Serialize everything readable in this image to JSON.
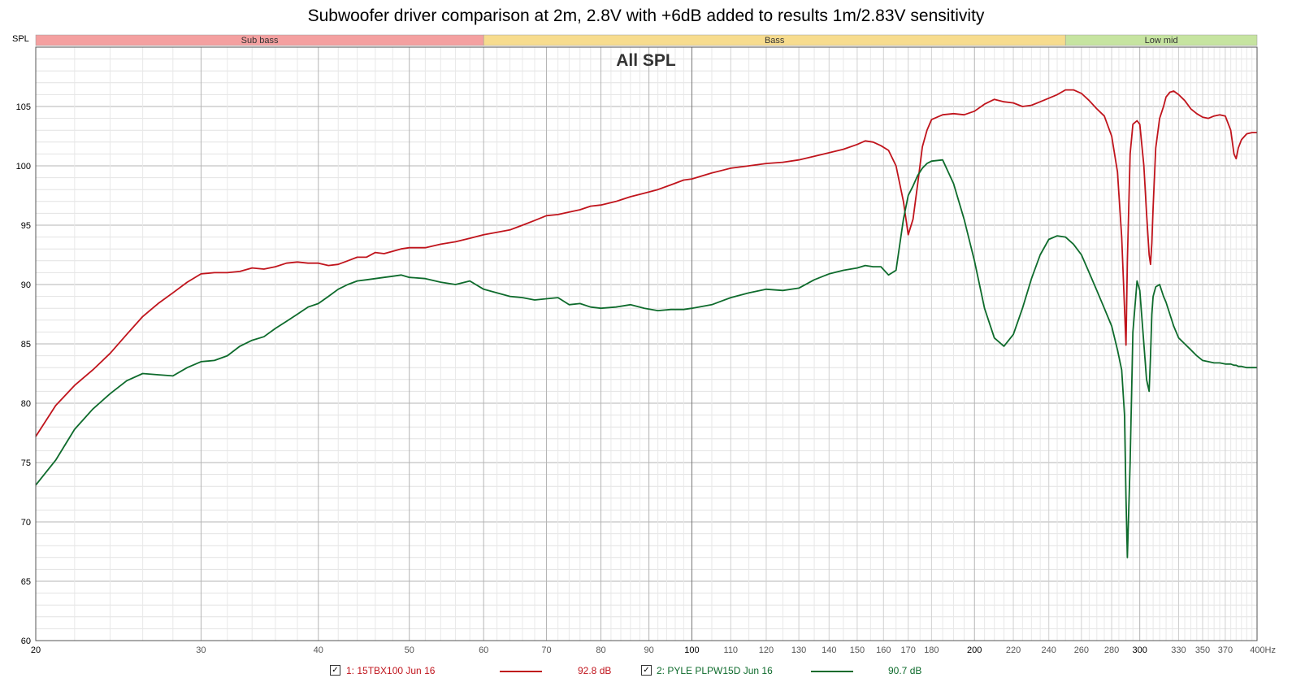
{
  "chart_data": {
    "type": "line",
    "title": "Subwoofer driver comparison at 2m, 2.8V with +6dB added to results 1m/2.83V sensitivity",
    "subtitle": "All SPL",
    "ylabel": "SPL",
    "x_scale": "log",
    "xlim": [
      20,
      400
    ],
    "ylim": [
      60,
      110
    ],
    "y_ticks": [
      60,
      65,
      70,
      75,
      80,
      85,
      90,
      95,
      100,
      105
    ],
    "x_ticks": [
      20,
      30,
      40,
      50,
      60,
      70,
      80,
      90,
      100,
      110,
      120,
      130,
      140,
      150,
      160,
      170,
      180,
      200,
      220,
      240,
      260,
      280,
      300,
      330,
      350,
      370,
      400
    ],
    "x_tick_labels": [
      "20",
      "30",
      "40",
      "50",
      "60",
      "70",
      "80",
      "90",
      "100",
      "110",
      "120",
      "130",
      "140",
      "150",
      "160",
      "170",
      "180",
      "200",
      "220",
      "240",
      "260",
      "280",
      "300",
      "330",
      "350",
      "370",
      "400Hz"
    ],
    "grid": true,
    "bands": [
      {
        "name": "Sub bass",
        "from": 20,
        "to": 60,
        "color": "#f4a0a0"
      },
      {
        "name": "Bass",
        "from": 60,
        "to": 250,
        "color": "#f7dc8e"
      },
      {
        "name": "Low mid",
        "from": 250,
        "to": 400,
        "color": "#c6e4a0"
      }
    ],
    "series": [
      {
        "name": "1: 15TBX100 Jun 16",
        "level": "92.8 dB",
        "color": "#c0141c",
        "x": [
          20,
          21,
          22,
          23,
          24,
          25,
          26,
          27,
          28,
          29,
          30,
          31,
          32,
          33,
          34,
          35,
          36,
          37,
          38,
          39,
          40,
          41,
          42,
          43,
          44,
          45,
          46,
          47,
          48,
          49,
          50,
          52,
          54,
          56,
          58,
          60,
          62,
          64,
          66,
          68,
          70,
          72,
          74,
          76,
          78,
          80,
          83,
          86,
          89,
          92,
          95,
          98,
          100,
          105,
          110,
          115,
          120,
          125,
          130,
          135,
          140,
          145,
          150,
          153,
          156,
          159,
          162,
          165,
          168,
          170,
          172,
          174,
          176,
          178,
          180,
          185,
          190,
          195,
          200,
          205,
          210,
          215,
          220,
          225,
          230,
          235,
          240,
          245,
          250,
          255,
          260,
          265,
          270,
          275,
          280,
          284,
          287,
          289,
          290,
          291,
          293,
          295,
          298,
          300,
          303,
          305,
          307,
          308,
          309,
          310,
          312,
          315,
          318,
          320,
          323,
          326,
          330,
          335,
          340,
          345,
          350,
          355,
          360,
          365,
          370,
          375,
          378,
          380,
          382,
          385,
          390,
          395,
          400
        ],
        "y": [
          77.2,
          79.8,
          81.5,
          82.8,
          84.2,
          85.8,
          87.3,
          88.4,
          89.3,
          90.2,
          90.9,
          91.0,
          91.0,
          91.1,
          91.4,
          91.3,
          91.5,
          91.8,
          91.9,
          91.8,
          91.8,
          91.6,
          91.7,
          92.0,
          92.3,
          92.3,
          92.7,
          92.6,
          92.8,
          93.0,
          93.1,
          93.1,
          93.4,
          93.6,
          93.9,
          94.2,
          94.4,
          94.6,
          95.0,
          95.4,
          95.8,
          95.9,
          96.1,
          96.3,
          96.6,
          96.7,
          97.0,
          97.4,
          97.7,
          98.0,
          98.4,
          98.8,
          98.9,
          99.4,
          99.8,
          100.0,
          100.2,
          100.3,
          100.5,
          100.8,
          101.1,
          101.4,
          101.8,
          102.1,
          102.0,
          101.7,
          101.3,
          100.0,
          97.0,
          94.2,
          95.5,
          98.5,
          101.6,
          103.0,
          103.9,
          104.3,
          104.4,
          104.3,
          104.6,
          105.2,
          105.6,
          105.4,
          105.3,
          105.0,
          105.1,
          105.4,
          105.7,
          106.0,
          106.4,
          106.4,
          106.1,
          105.5,
          104.8,
          104.2,
          102.5,
          99.5,
          94.0,
          88.0,
          84.9,
          92.0,
          101.0,
          103.5,
          103.8,
          103.5,
          100.0,
          96.0,
          92.5,
          91.7,
          93.5,
          96.5,
          101.5,
          104.0,
          105.0,
          105.8,
          106.2,
          106.3,
          106.0,
          105.5,
          104.8,
          104.4,
          104.1,
          104.0,
          104.2,
          104.3,
          104.2,
          103.0,
          101.0,
          100.6,
          101.5,
          102.2,
          102.7,
          102.8,
          102.8
        ]
      },
      {
        "name": "2: PYLE PLPW15D Jun 16",
        "level": "90.7 dB",
        "color": "#0e6b2c",
        "x": [
          20,
          21,
          22,
          23,
          24,
          25,
          26,
          27,
          28,
          29,
          30,
          31,
          32,
          33,
          34,
          35,
          36,
          37,
          38,
          39,
          40,
          41,
          42,
          43,
          44,
          45,
          46,
          47,
          48,
          49,
          50,
          52,
          54,
          56,
          58,
          60,
          62,
          64,
          66,
          68,
          70,
          72,
          74,
          76,
          78,
          80,
          83,
          86,
          89,
          92,
          95,
          98,
          100,
          105,
          110,
          115,
          120,
          125,
          130,
          135,
          140,
          145,
          150,
          153,
          156,
          159,
          162,
          165,
          168,
          170,
          172,
          174,
          176,
          178,
          180,
          185,
          190,
          195,
          200,
          205,
          210,
          215,
          220,
          225,
          230,
          235,
          240,
          245,
          250,
          255,
          260,
          265,
          270,
          275,
          280,
          284,
          287,
          289,
          290,
          291,
          293,
          295,
          298,
          300,
          303,
          305,
          307,
          308,
          309,
          310,
          312,
          315,
          318,
          320,
          323,
          326,
          330,
          335,
          340,
          345,
          350,
          355,
          360,
          365,
          370,
          375,
          378,
          380,
          382,
          385,
          390,
          395,
          400
        ],
        "y": [
          73.1,
          75.2,
          77.8,
          79.5,
          80.8,
          81.9,
          82.5,
          82.4,
          82.3,
          83.0,
          83.5,
          83.6,
          84.0,
          84.8,
          85.3,
          85.6,
          86.3,
          86.9,
          87.5,
          88.1,
          88.4,
          89.0,
          89.6,
          90.0,
          90.3,
          90.4,
          90.5,
          90.6,
          90.7,
          90.8,
          90.6,
          90.5,
          90.2,
          90.0,
          90.3,
          89.6,
          89.3,
          89.0,
          88.9,
          88.7,
          88.8,
          88.9,
          88.3,
          88.4,
          88.1,
          88.0,
          88.1,
          88.3,
          88.0,
          87.8,
          87.9,
          87.9,
          88.0,
          88.3,
          88.9,
          89.3,
          89.6,
          89.5,
          89.7,
          90.4,
          90.9,
          91.2,
          91.4,
          91.6,
          91.5,
          91.5,
          90.8,
          91.2,
          95.5,
          97.5,
          98.3,
          99.2,
          99.8,
          100.2,
          100.4,
          100.5,
          98.5,
          95.5,
          92.0,
          88.0,
          85.5,
          84.8,
          85.8,
          88.0,
          90.5,
          92.5,
          93.8,
          94.1,
          94.0,
          93.4,
          92.5,
          91.0,
          89.5,
          88.0,
          86.5,
          84.5,
          82.8,
          79.0,
          72.0,
          67.0,
          75.0,
          86.0,
          90.3,
          89.5,
          85.0,
          82.0,
          81.0,
          84.0,
          87.5,
          89.0,
          89.8,
          90.0,
          89.0,
          88.5,
          87.5,
          86.5,
          85.5,
          85.0,
          84.5,
          84.0,
          83.6,
          83.5,
          83.4,
          83.4,
          83.3,
          83.3,
          83.2,
          83.2,
          83.1,
          83.1,
          83.0,
          83.0,
          83.0
        ]
      }
    ]
  }
}
